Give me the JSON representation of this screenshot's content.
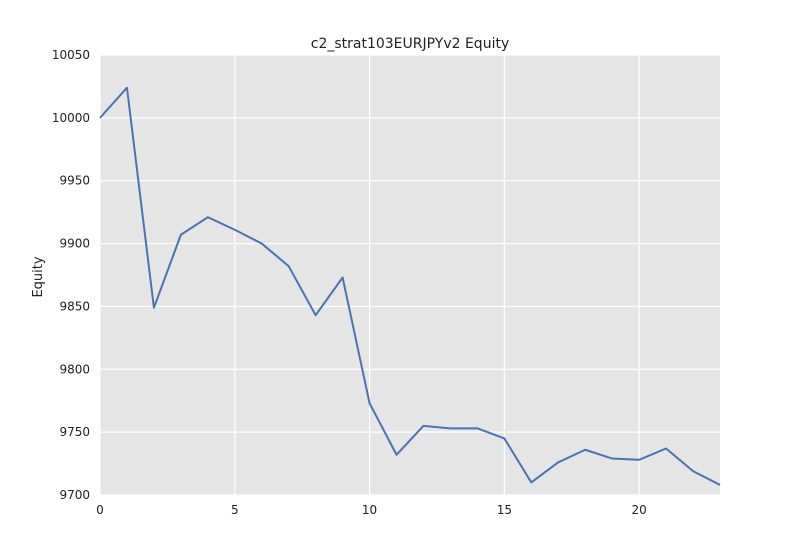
{
  "chart_data": {
    "type": "line",
    "title": "c2_strat103EURJPYv2 Equity",
    "xlabel": "",
    "ylabel": "Equity",
    "xlim": [
      0,
      23
    ],
    "ylim": [
      9700,
      10050
    ],
    "x_ticks": [
      0,
      5,
      10,
      15,
      20
    ],
    "y_ticks": [
      9700,
      9750,
      9800,
      9850,
      9900,
      9950,
      10000,
      10050
    ],
    "grid": true,
    "legend": "none",
    "colors": {
      "plot_background": "#e5e5e5",
      "grid": "#ffffff",
      "line": "#4c72b0"
    },
    "series": [
      {
        "x": [
          0,
          1,
          2,
          3,
          4,
          5,
          6,
          7,
          8,
          9,
          10,
          11,
          12,
          13,
          14,
          15,
          16,
          17,
          18,
          19,
          20,
          21,
          22,
          23
        ],
        "values": [
          10000,
          10024,
          9849,
          9907,
          9921,
          9911,
          9900,
          9882,
          9843,
          9873,
          9773,
          9732,
          9755,
          9753,
          9753,
          9745,
          9710,
          9726,
          9736,
          9729,
          9728,
          9737,
          9719,
          9708
        ]
      }
    ]
  }
}
